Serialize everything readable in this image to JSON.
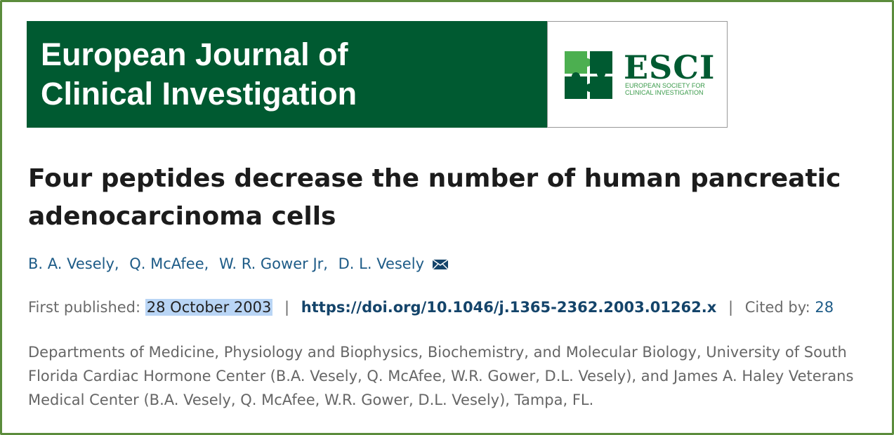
{
  "banner": {
    "journal_lines": [
      "European Journal of",
      "Clinical Investigation"
    ],
    "logo_name": "ESCI",
    "logo_sub_lines": [
      "EUROPEAN SOCIETY FOR",
      "CLINICAL INVESTIGATION"
    ]
  },
  "article": {
    "title": "Four peptides decrease the number of human pancreatic adenocarcinoma cells",
    "authors": [
      "B. A. Vesely,",
      "Q. McAfee,",
      "W. R. Gower Jr,",
      "D. L. Vesely"
    ],
    "published_label": "First published:",
    "published_date": "28 October 2003",
    "separator": "|",
    "doi": "https://doi.org/10.1046/j.1365-2362.2003.01262.x",
    "cited_label": "Cited by:",
    "cited_count": 28,
    "affiliation": "Departments of Medicine, Physiology and Biophysics, Biochemistry, and Molecular Biology, University of South Florida Cardiac Hormone Center (B.A. Vesely, Q. McAfee, W.R. Gower, D.L. Vesely), and James A. Haley Veterans Medical Center (B.A. Vesely, Q. McAfee, W.R. Gower, D.L. Vesely), Tampa, FL."
  }
}
